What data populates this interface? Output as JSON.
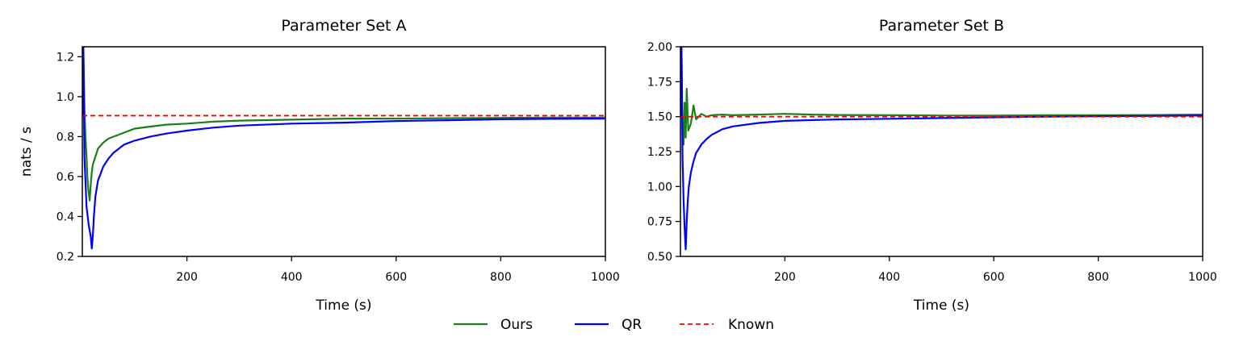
{
  "colors": {
    "ours": "#1a7f1a",
    "qr": "#0000ff",
    "known": "#ff0000"
  },
  "legend": [
    {
      "key": "ours",
      "label": "Ours",
      "style": "solid"
    },
    {
      "key": "qr",
      "label": "QR",
      "style": "solid"
    },
    {
      "key": "known",
      "label": "Known",
      "style": "dashed"
    }
  ],
  "chart_data": [
    {
      "type": "line",
      "title": "Parameter Set A",
      "xlabel": "Time (s)",
      "ylabel": "nats / s",
      "xlim": [
        0,
        1000
      ],
      "ylim": [
        0.2,
        1.25
      ],
      "xticks": [
        200,
        400,
        600,
        800,
        1000
      ],
      "yticks": [
        0.2,
        0.4,
        0.6,
        0.8,
        1.0,
        1.2
      ],
      "grid": false,
      "series": [
        {
          "name": "Ours",
          "key": "ours",
          "x": [
            0,
            2,
            4,
            6,
            8,
            10,
            12,
            14,
            16,
            18,
            20,
            25,
            30,
            40,
            50,
            60,
            80,
            100,
            130,
            160,
            200,
            250,
            300,
            400,
            500,
            600,
            700,
            800,
            900,
            1000
          ],
          "y": [
            0.9,
            1.25,
            0.95,
            0.8,
            0.7,
            0.58,
            0.52,
            0.48,
            0.56,
            0.62,
            0.66,
            0.7,
            0.74,
            0.77,
            0.79,
            0.8,
            0.82,
            0.84,
            0.85,
            0.86,
            0.865,
            0.875,
            0.88,
            0.885,
            0.89,
            0.89,
            0.892,
            0.894,
            0.895,
            0.895
          ]
        },
        {
          "name": "QR",
          "key": "qr",
          "x": [
            0,
            2,
            4,
            8,
            12,
            16,
            18,
            20,
            22,
            25,
            30,
            40,
            50,
            60,
            80,
            100,
            130,
            160,
            200,
            250,
            300,
            400,
            500,
            600,
            700,
            800,
            900,
            1000
          ],
          "y": [
            0.9,
            1.25,
            0.7,
            0.45,
            0.36,
            0.3,
            0.24,
            0.3,
            0.4,
            0.5,
            0.58,
            0.65,
            0.69,
            0.72,
            0.76,
            0.78,
            0.8,
            0.815,
            0.83,
            0.845,
            0.855,
            0.865,
            0.87,
            0.878,
            0.882,
            0.887,
            0.889,
            0.89
          ]
        },
        {
          "name": "Known",
          "key": "known",
          "constant": 0.905
        }
      ]
    },
    {
      "type": "line",
      "title": "Parameter Set B",
      "xlabel": "Time (s)",
      "ylabel": "",
      "xlim": [
        0,
        1000
      ],
      "ylim": [
        0.5,
        2.0
      ],
      "xticks": [
        200,
        400,
        600,
        800,
        1000
      ],
      "yticks": [
        0.5,
        0.75,
        1.0,
        1.25,
        1.5,
        1.75,
        2.0
      ],
      "grid": false,
      "series": [
        {
          "name": "Ours",
          "key": "ours",
          "x": [
            0,
            2,
            4,
            6,
            8,
            10,
            12,
            15,
            20,
            25,
            30,
            40,
            50,
            60,
            80,
            100,
            150,
            200,
            250,
            300,
            400,
            500,
            600,
            700,
            800,
            900,
            1000
          ],
          "y": [
            1.5,
            2.0,
            1.4,
            1.3,
            1.6,
            1.35,
            1.7,
            1.4,
            1.45,
            1.58,
            1.48,
            1.52,
            1.5,
            1.51,
            1.515,
            1.51,
            1.515,
            1.52,
            1.515,
            1.512,
            1.51,
            1.508,
            1.508,
            1.51,
            1.51,
            1.512,
            1.515
          ]
        },
        {
          "name": "QR",
          "key": "qr",
          "x": [
            0,
            2,
            4,
            6,
            8,
            10,
            12,
            14,
            16,
            20,
            25,
            30,
            40,
            50,
            60,
            80,
            100,
            150,
            200,
            300,
            400,
            500,
            600,
            700,
            800,
            900,
            1000
          ],
          "y": [
            1.5,
            2.0,
            1.2,
            0.9,
            0.7,
            0.55,
            0.75,
            0.9,
            1.0,
            1.1,
            1.18,
            1.24,
            1.3,
            1.34,
            1.37,
            1.41,
            1.43,
            1.455,
            1.47,
            1.48,
            1.485,
            1.49,
            1.495,
            1.5,
            1.503,
            1.505,
            1.508
          ]
        },
        {
          "name": "Known",
          "key": "known",
          "constant": 1.5
        }
      ]
    }
  ]
}
